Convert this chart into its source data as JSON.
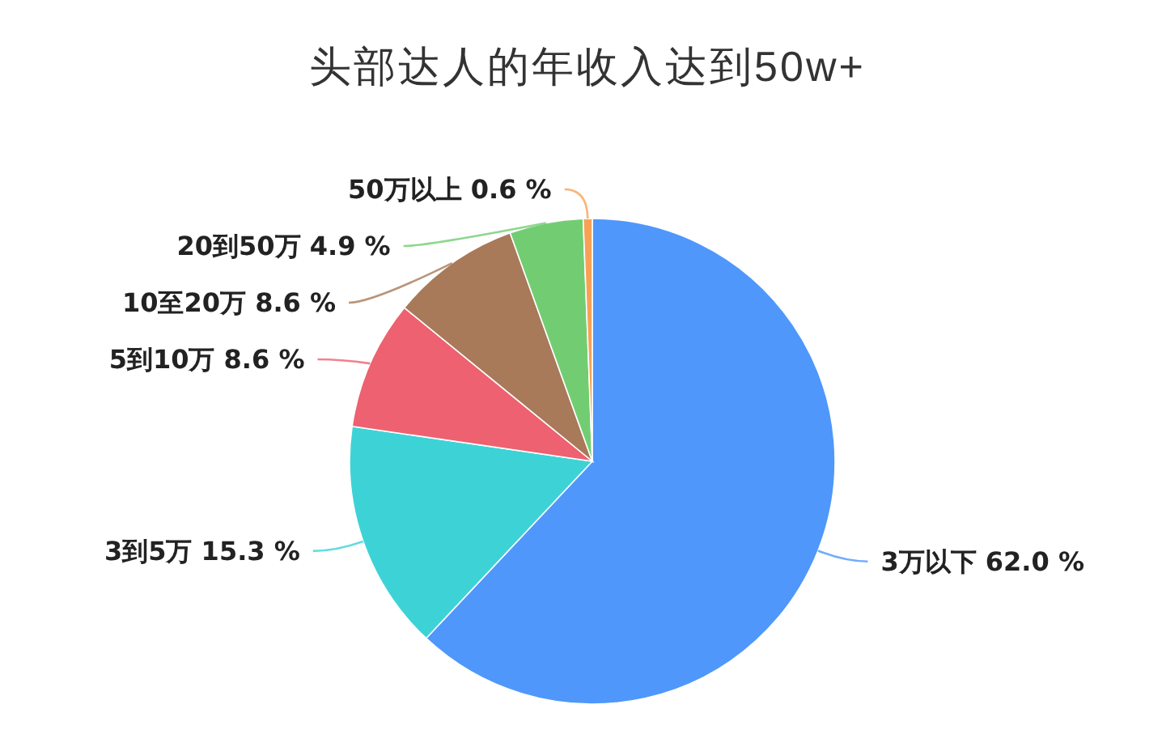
{
  "chart_data": {
    "type": "pie",
    "title": "头部达人的年收入达到50w+",
    "categories": [
      "3万以下",
      "3到5万",
      "5到10万",
      "10至20万",
      "20到50万",
      "50万以上"
    ],
    "values": [
      62.0,
      15.3,
      8.6,
      8.6,
      4.9,
      0.6
    ],
    "colors": [
      "#4f97fb",
      "#3dd3d6",
      "#ee6170",
      "#a87a5a",
      "#72cd72",
      "#f7a155"
    ],
    "value_labels": [
      "62.0 %",
      "15.3 %",
      "8.6 %",
      "8.6 %",
      "4.9 %",
      "0.6 %"
    ]
  }
}
